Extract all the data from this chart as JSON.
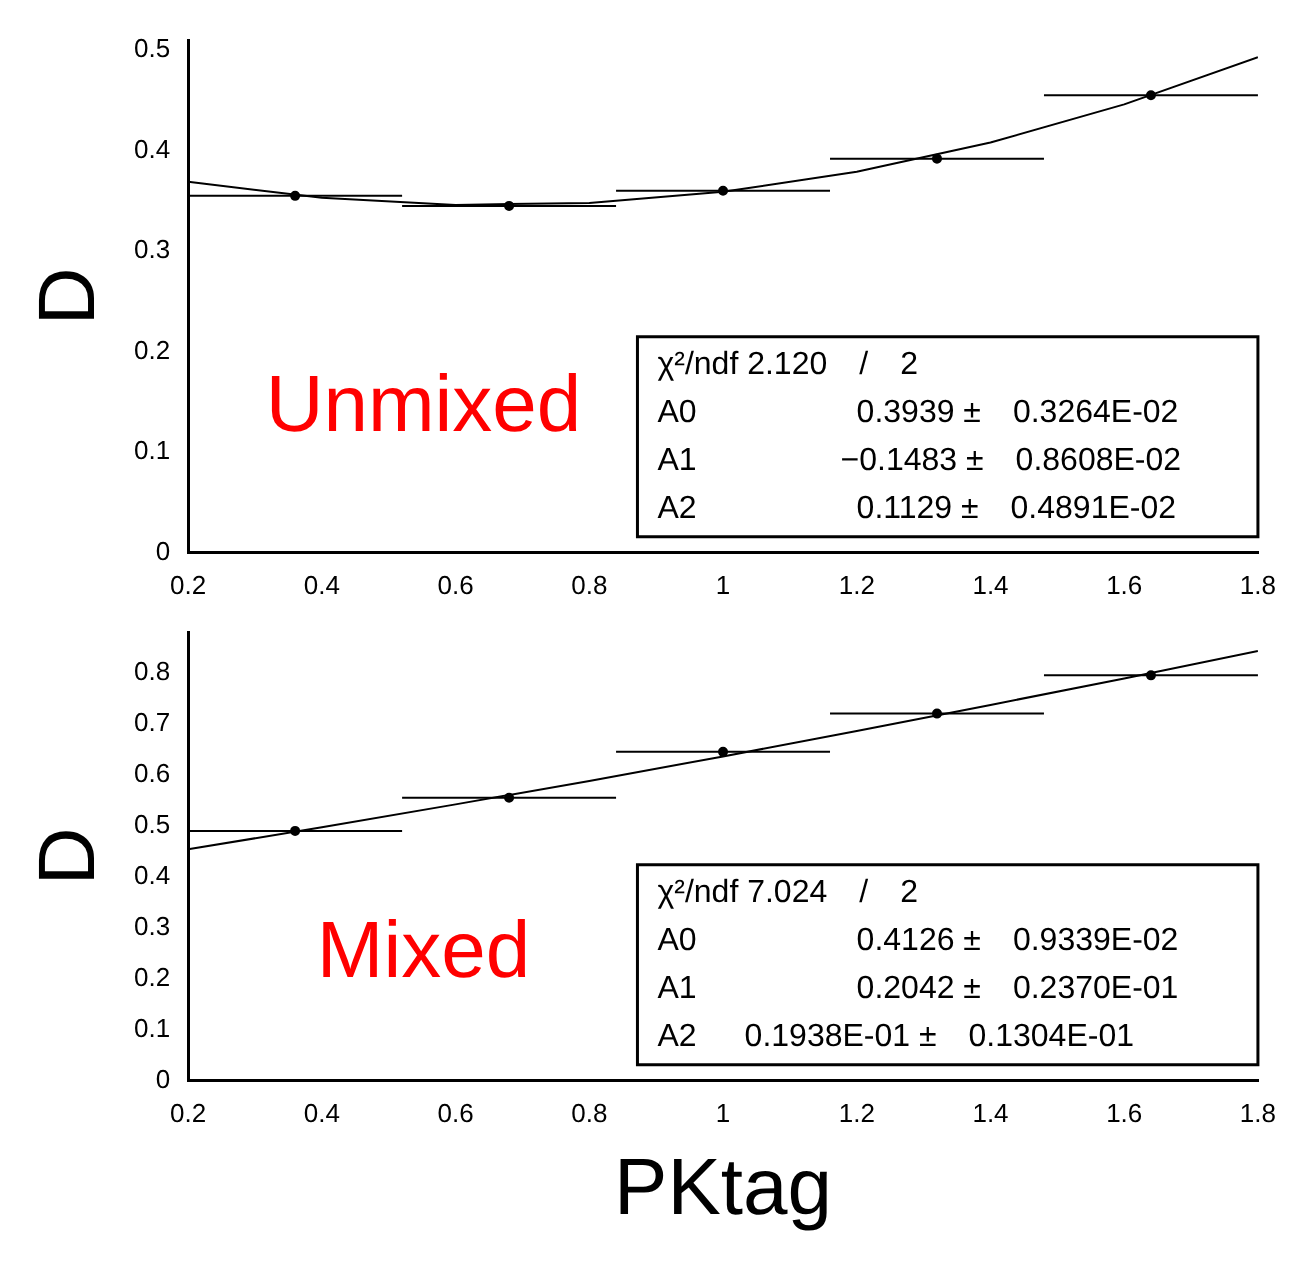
{
  "chart_data": [
    {
      "type": "scatter",
      "ylabel": "D",
      "xlim": [
        0.2,
        1.8
      ],
      "xticks": [
        0.2,
        0.4,
        0.6,
        0.8,
        1,
        1.2,
        1.4,
        1.6,
        1.8
      ],
      "ylim": [
        0,
        0.51
      ],
      "yticks": [
        0,
        0.1,
        0.2,
        0.3,
        0.4,
        0.5
      ],
      "annotations": [
        "χ²/ndf 2.120  /  2",
        "A0          0.3939 ±  0.3264E-02",
        "A1         −0.1483 ±  0.8608E-02",
        "A2          0.1129 ±  0.4891E-02",
        "Unmixed"
      ],
      "series": [
        {
          "marker": "circle",
          "color": "#000000",
          "x": [
            0.36,
            0.68,
            1.0,
            1.32,
            1.64
          ],
          "values": [
            0.355,
            0.345,
            0.36,
            0.392,
            0.455
          ],
          "xerrors": [
            0.16,
            0.16,
            0.16,
            0.16,
            0.16
          ]
        },
        {
          "type": "line",
          "marker": "none",
          "color": "#000000",
          "x": [
            0.2,
            0.4,
            0.6,
            0.8,
            1.0,
            1.2,
            1.4,
            1.6,
            1.8
          ],
          "values": [
            0.369,
            0.353,
            0.346,
            0.348,
            0.359,
            0.379,
            0.408,
            0.446,
            0.493
          ]
        }
      ]
    },
    {
      "type": "scatter",
      "ylabel": "D",
      "xlabel": "PKtag",
      "xlim": [
        0.2,
        1.8
      ],
      "xticks": [
        0.2,
        0.4,
        0.6,
        0.8,
        1,
        1.2,
        1.4,
        1.6,
        1.8
      ],
      "ylim": [
        0,
        0.88
      ],
      "yticks": [
        0,
        0.1,
        0.2,
        0.3,
        0.4,
        0.5,
        0.6,
        0.7,
        0.8
      ],
      "annotations": [
        "χ²/ndf 7.024  /  2",
        "A0          0.4126 ±  0.9339E-02",
        "A1          0.2042 ±  0.2370E-01",
        "A2   0.1938E-01 ±  0.1304E-01",
        "Mixed"
      ],
      "series": [
        {
          "marker": "circle",
          "color": "#000000",
          "x": [
            0.36,
            0.68,
            1.0,
            1.32,
            1.64
          ],
          "values": [
            0.49,
            0.555,
            0.645,
            0.72,
            0.795
          ],
          "xerrors": [
            0.16,
            0.16,
            0.16,
            0.16,
            0.16
          ]
        },
        {
          "type": "line",
          "marker": "none",
          "color": "#000000",
          "x": [
            0.2,
            0.4,
            0.6,
            0.8,
            1.0,
            1.2,
            1.4,
            1.6,
            1.8
          ],
          "values": [
            0.454,
            0.497,
            0.542,
            0.588,
            0.636,
            0.686,
            0.737,
            0.789,
            0.843
          ]
        }
      ]
    }
  ]
}
